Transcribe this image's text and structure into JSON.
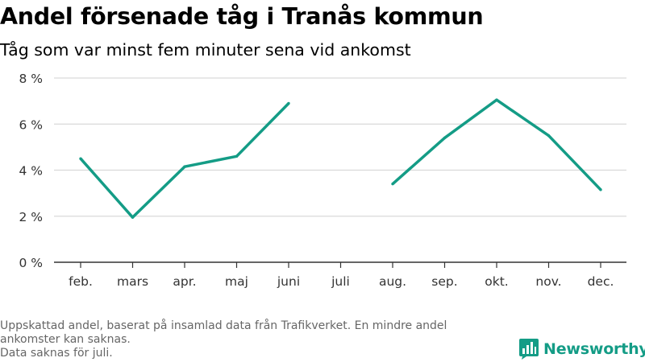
{
  "header": {
    "title": "Andel försenade tåg i Tranås kommun",
    "subtitle": "Tåg som var minst fem minuter sena vid ankomst"
  },
  "footer": {
    "note_line1": "Uppskattad andel, baserat på insamlad data från Trafikverket. En mindre andel ankomster kan saknas.",
    "note_line2": "Data saknas för juli.",
    "brand": "Newsworthy"
  },
  "colors": {
    "line": "#149c86",
    "brand": "#149c86",
    "grid": "#d9d9d9",
    "axis": "#333333",
    "footnote": "#666666"
  },
  "icons": {
    "brand_logo": "newsworthy-logo-icon"
  },
  "chart_data": {
    "type": "line",
    "title": "Andel försenade tåg i Tranås kommun",
    "subtitle": "Tåg som var minst fem minuter sena vid ankomst",
    "categories": [
      "feb.",
      "mars",
      "apr.",
      "maj",
      "juni",
      "juli",
      "aug.",
      "sep.",
      "okt.",
      "nov.",
      "dec."
    ],
    "series": [
      {
        "values": [
          4.5,
          1.95,
          4.15,
          4.6,
          6.9,
          null,
          3.4,
          5.4,
          7.05,
          5.5,
          3.15
        ]
      }
    ],
    "ylim": [
      0,
      8
    ],
    "yticks": [
      0,
      2,
      4,
      6,
      8
    ],
    "ytick_labels": [
      "0 %",
      "2 %",
      "4 %",
      "6 %",
      "8 %"
    ],
    "xlabel": "",
    "ylabel": "",
    "grid": "horizontal",
    "legend": "none"
  }
}
